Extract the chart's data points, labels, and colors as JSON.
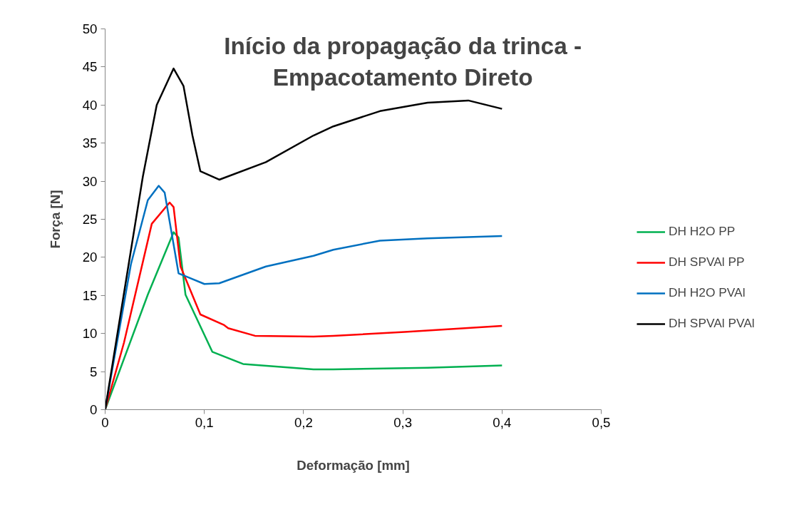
{
  "chart_data": {
    "type": "line",
    "title": "Início da propagação da trinca -\nEmpacotamento Direto",
    "xlabel": "Deformação [mm]",
    "ylabel": "Força [N]",
    "xlim": [
      0,
      0.5
    ],
    "ylim": [
      0,
      50
    ],
    "xticks": [
      0,
      {
        "value": 0.1,
        "label": "0,1"
      },
      {
        "value": 0.2,
        "label": "0,2"
      },
      {
        "value": 0.3,
        "label": "0,3"
      },
      {
        "value": 0.4,
        "label": "0,4"
      },
      {
        "value": 0.5,
        "label": "0,5"
      }
    ],
    "yticks": [
      0,
      5,
      10,
      15,
      20,
      25,
      30,
      35,
      40,
      45,
      50
    ],
    "grid": false,
    "legend": "right",
    "marker": "none",
    "line_style": "solid",
    "series": [
      {
        "name": "DH H2O PP",
        "color": "#00b050",
        "x": [
          0,
          0.043,
          0.069,
          0.074,
          0.081,
          0.108,
          0.139,
          0.21,
          0.23,
          0.325,
          0.4
        ],
        "values": [
          0,
          15.1,
          23.3,
          22.6,
          15.1,
          7.6,
          6.0,
          5.3,
          5.3,
          5.5,
          5.8
        ]
      },
      {
        "name": "DH SPVAl PP",
        "color": "#ff0000",
        "x": [
          0,
          0.019,
          0.047,
          0.065,
          0.069,
          0.076,
          0.096,
          0.12,
          0.124,
          0.151,
          0.21,
          0.23,
          0.302,
          0.4
        ],
        "values": [
          0,
          8.8,
          24.4,
          27.2,
          26.6,
          18.8,
          12.5,
          11.1,
          10.7,
          9.7,
          9.6,
          9.7,
          10.2,
          11.0
        ]
      },
      {
        "name": "DH H2O PVAl",
        "color": "#0070c0",
        "x": [
          0,
          0.026,
          0.043,
          0.054,
          0.06,
          0.074,
          0.1,
          0.115,
          0.162,
          0.21,
          0.23,
          0.277,
          0.325,
          0.4
        ],
        "values": [
          0,
          19.1,
          27.5,
          29.4,
          28.5,
          17.9,
          16.5,
          16.6,
          18.8,
          20.2,
          21.0,
          22.2,
          22.5,
          22.8
        ]
      },
      {
        "name": "DH SPVAl PVAl",
        "color": "#000000",
        "x": [
          0,
          0.038,
          0.052,
          0.069,
          0.079,
          0.088,
          0.096,
          0.115,
          0.162,
          0.21,
          0.23,
          0.277,
          0.325,
          0.366,
          0.4
        ],
        "values": [
          0,
          30.6,
          40.0,
          44.8,
          42.5,
          36.0,
          31.3,
          30.2,
          32.5,
          36.0,
          37.2,
          39.2,
          40.3,
          40.6,
          39.5
        ]
      }
    ]
  }
}
